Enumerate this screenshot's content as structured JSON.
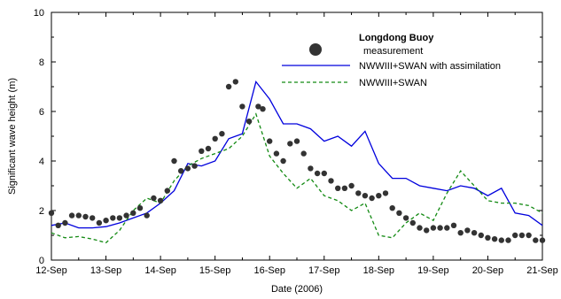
{
  "chart_data": {
    "type": "line",
    "title": "",
    "xlabel": "Date (2006)",
    "ylabel": "Significant wave height (m)",
    "xlim": [
      "2006-09-12",
      "2006-09-21"
    ],
    "ylim": [
      0,
      10
    ],
    "x_ticks": [
      "12-Sep",
      "13-Sep",
      "14-Sep",
      "15-Sep",
      "16-Sep",
      "17-Sep",
      "18-Sep",
      "19-Sep",
      "20-Sep",
      "21-Sep"
    ],
    "y_ticks": [
      "0",
      "2",
      "4",
      "6",
      "8",
      "10"
    ],
    "grid": false,
    "legend": {
      "title": "Longdong Buoy",
      "placement": "top-right"
    },
    "series": [
      {
        "name": "measurement",
        "kind": "scatter",
        "color": "#333333",
        "x": [
          "2006-09-12T00:00",
          "2006-09-12T03:00",
          "2006-09-12T06:00",
          "2006-09-12T09:00",
          "2006-09-12T12:00",
          "2006-09-12T15:00",
          "2006-09-12T18:00",
          "2006-09-12T21:00",
          "2006-09-13T00:00",
          "2006-09-13T03:00",
          "2006-09-13T06:00",
          "2006-09-13T09:00",
          "2006-09-13T12:00",
          "2006-09-13T15:00",
          "2006-09-13T18:00",
          "2006-09-13T21:00",
          "2006-09-14T00:00",
          "2006-09-14T03:00",
          "2006-09-14T06:00",
          "2006-09-14T09:00",
          "2006-09-14T12:00",
          "2006-09-14T15:00",
          "2006-09-14T18:00",
          "2006-09-14T21:00",
          "2006-09-15T00:00",
          "2006-09-15T03:00",
          "2006-09-15T06:00",
          "2006-09-15T09:00",
          "2006-09-15T12:00",
          "2006-09-15T15:00",
          "2006-09-15T19:00",
          "2006-09-15T21:00",
          "2006-09-16T00:00",
          "2006-09-16T03:00",
          "2006-09-16T06:00",
          "2006-09-16T09:00",
          "2006-09-16T12:00",
          "2006-09-16T15:00",
          "2006-09-16T18:00",
          "2006-09-16T21:00",
          "2006-09-17T00:00",
          "2006-09-17T03:00",
          "2006-09-17T06:00",
          "2006-09-17T09:00",
          "2006-09-17T12:00",
          "2006-09-17T15:00",
          "2006-09-17T18:00",
          "2006-09-17T21:00",
          "2006-09-18T00:00",
          "2006-09-18T03:00",
          "2006-09-18T06:00",
          "2006-09-18T09:00",
          "2006-09-18T12:00",
          "2006-09-18T15:00",
          "2006-09-18T18:00",
          "2006-09-18T21:00",
          "2006-09-19T00:00",
          "2006-09-19T03:00",
          "2006-09-19T06:00",
          "2006-09-19T09:00",
          "2006-09-19T12:00",
          "2006-09-19T15:00",
          "2006-09-19T18:00",
          "2006-09-19T21:00",
          "2006-09-20T00:00",
          "2006-09-20T03:00",
          "2006-09-20T06:00",
          "2006-09-20T09:00",
          "2006-09-20T12:00",
          "2006-09-20T15:00",
          "2006-09-20T18:00",
          "2006-09-20T21:00",
          "2006-09-21T00:00"
        ],
        "y": [
          1.9,
          1.4,
          1.5,
          1.8,
          1.8,
          1.75,
          1.7,
          1.5,
          1.6,
          1.7,
          1.7,
          1.8,
          1.9,
          2.1,
          1.8,
          2.5,
          2.4,
          2.8,
          4.0,
          3.6,
          3.7,
          3.8,
          4.4,
          4.5,
          4.9,
          5.1,
          7.0,
          7.2,
          6.2,
          5.6,
          6.2,
          6.1,
          4.8,
          4.3,
          4.0,
          4.7,
          4.8,
          4.3,
          3.7,
          3.5,
          3.5,
          3.2,
          2.9,
          2.9,
          3.0,
          2.7,
          2.6,
          2.5,
          2.6,
          2.7,
          2.1,
          1.9,
          1.7,
          1.5,
          1.3,
          1.2,
          1.3,
          1.3,
          1.3,
          1.4,
          1.1,
          1.2,
          1.1,
          1.0,
          0.9,
          0.85,
          0.8,
          0.8,
          1.0,
          1.0,
          1.0,
          0.8,
          0.8
        ]
      },
      {
        "name": "NWWIII+SWAN with assimilation",
        "kind": "line",
        "color": "#0000dd",
        "dash": "solid",
        "x": [
          "2006-09-12T00:00",
          "2006-09-12T06:00",
          "2006-09-12T12:00",
          "2006-09-12T18:00",
          "2006-09-13T00:00",
          "2006-09-13T06:00",
          "2006-09-13T12:00",
          "2006-09-13T18:00",
          "2006-09-14T00:00",
          "2006-09-14T06:00",
          "2006-09-14T12:00",
          "2006-09-14T18:00",
          "2006-09-15T00:00",
          "2006-09-15T06:00",
          "2006-09-15T12:00",
          "2006-09-15T18:00",
          "2006-09-16T00:00",
          "2006-09-16T06:00",
          "2006-09-16T12:00",
          "2006-09-16T18:00",
          "2006-09-17T00:00",
          "2006-09-17T06:00",
          "2006-09-17T12:00",
          "2006-09-17T18:00",
          "2006-09-18T00:00",
          "2006-09-18T06:00",
          "2006-09-18T12:00",
          "2006-09-18T18:00",
          "2006-09-19T00:00",
          "2006-09-19T06:00",
          "2006-09-19T12:00",
          "2006-09-19T18:00",
          "2006-09-20T00:00",
          "2006-09-20T06:00",
          "2006-09-20T12:00",
          "2006-09-20T18:00",
          "2006-09-21T00:00"
        ],
        "y": [
          1.4,
          1.5,
          1.3,
          1.3,
          1.35,
          1.5,
          1.7,
          1.9,
          2.3,
          2.8,
          3.9,
          3.8,
          4.0,
          4.9,
          5.1,
          7.2,
          6.5,
          5.5,
          5.5,
          5.3,
          4.8,
          5.0,
          4.6,
          5.2,
          3.9,
          3.3,
          3.3,
          3.0,
          2.9,
          2.8,
          3.0,
          2.9,
          2.6,
          2.9,
          1.9,
          1.8,
          1.4
        ]
      },
      {
        "name": "NWWIII+SWAN",
        "kind": "line",
        "color": "#138a13",
        "dash": "dashed",
        "x": [
          "2006-09-12T00:00",
          "2006-09-12T06:00",
          "2006-09-12T12:00",
          "2006-09-12T18:00",
          "2006-09-13T00:00",
          "2006-09-13T06:00",
          "2006-09-13T12:00",
          "2006-09-13T18:00",
          "2006-09-14T00:00",
          "2006-09-14T06:00",
          "2006-09-14T12:00",
          "2006-09-14T18:00",
          "2006-09-15T00:00",
          "2006-09-15T06:00",
          "2006-09-15T12:00",
          "2006-09-15T18:00",
          "2006-09-16T00:00",
          "2006-09-16T06:00",
          "2006-09-16T12:00",
          "2006-09-16T18:00",
          "2006-09-17T00:00",
          "2006-09-17T06:00",
          "2006-09-17T12:00",
          "2006-09-17T18:00",
          "2006-09-18T00:00",
          "2006-09-18T06:00",
          "2006-09-18T12:00",
          "2006-09-18T18:00",
          "2006-09-19T00:00",
          "2006-09-19T06:00",
          "2006-09-19T12:00",
          "2006-09-19T18:00",
          "2006-09-20T00:00",
          "2006-09-20T06:00",
          "2006-09-20T12:00",
          "2006-09-20T18:00",
          "2006-09-21T00:00"
        ],
        "y": [
          1.1,
          0.9,
          0.95,
          0.85,
          0.7,
          1.2,
          2.0,
          2.5,
          2.3,
          3.2,
          3.8,
          4.1,
          4.3,
          4.5,
          5.0,
          5.9,
          4.2,
          3.5,
          2.9,
          3.3,
          2.6,
          2.4,
          2.0,
          2.3,
          1.0,
          0.9,
          1.5,
          1.9,
          1.6,
          2.7,
          3.6,
          3.0,
          2.4,
          2.3,
          2.3,
          2.2,
          1.9
        ]
      }
    ]
  }
}
